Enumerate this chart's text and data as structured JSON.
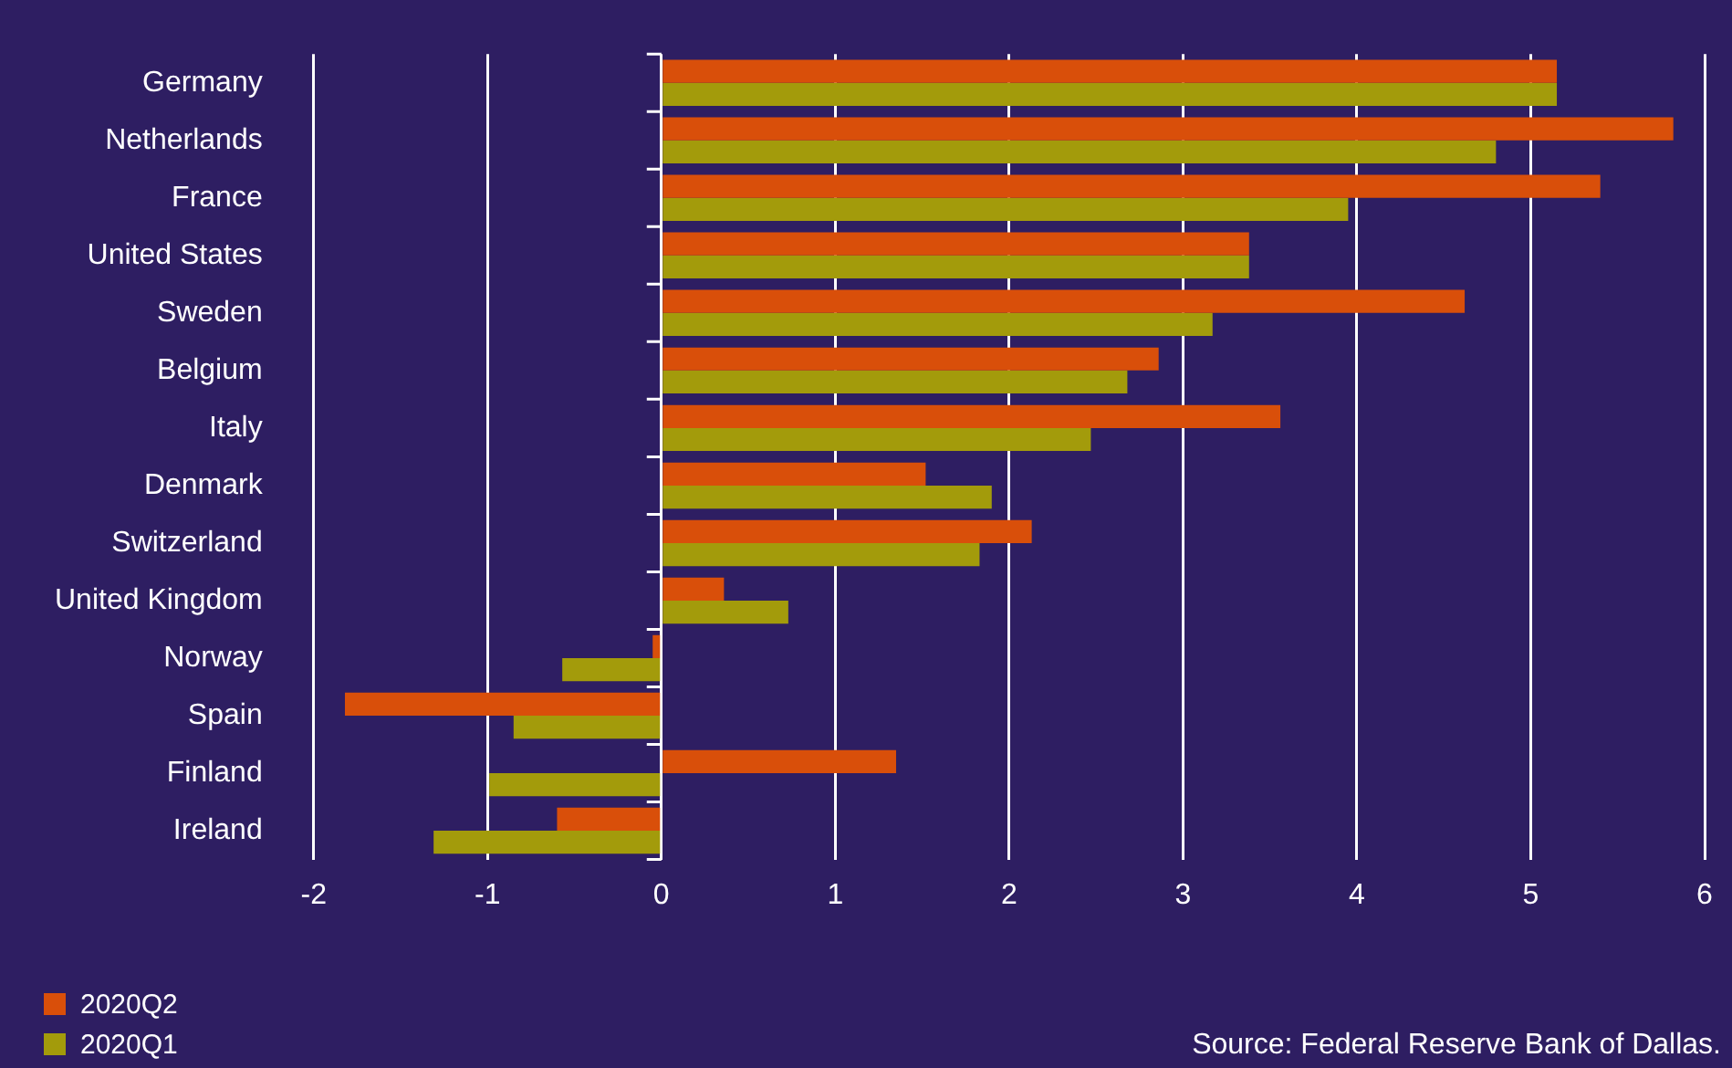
{
  "chart_data": {
    "type": "bar",
    "orientation": "horizontal",
    "categories": [
      "Germany",
      "Netherlands",
      "France",
      "United States",
      "Sweden",
      "Belgium",
      "Italy",
      "Denmark",
      "Switzerland",
      "United Kingdom",
      "Norway",
      "Spain",
      "Finland",
      "Ireland"
    ],
    "series": [
      {
        "name": "2020Q2",
        "color": "#d94f0a",
        "values": [
          5.15,
          5.82,
          5.4,
          3.38,
          4.62,
          2.86,
          3.56,
          1.52,
          2.13,
          0.36,
          -0.05,
          -1.82,
          1.35,
          -0.6
        ]
      },
      {
        "name": "2020Q1",
        "color": "#a39b0b",
        "values": [
          5.15,
          4.8,
          3.95,
          3.38,
          3.17,
          2.68,
          2.47,
          1.9,
          1.83,
          0.73,
          -0.57,
          -0.85,
          -0.99,
          -1.31
        ]
      }
    ],
    "xlim": [
      -2,
      6
    ],
    "xticks": [
      -2,
      -1,
      0,
      1,
      2,
      3,
      4,
      5,
      6
    ],
    "grid": "x",
    "legend": "bottom left",
    "annotations": [
      "Source: Federal Reserve Bank of Dallas."
    ]
  }
}
